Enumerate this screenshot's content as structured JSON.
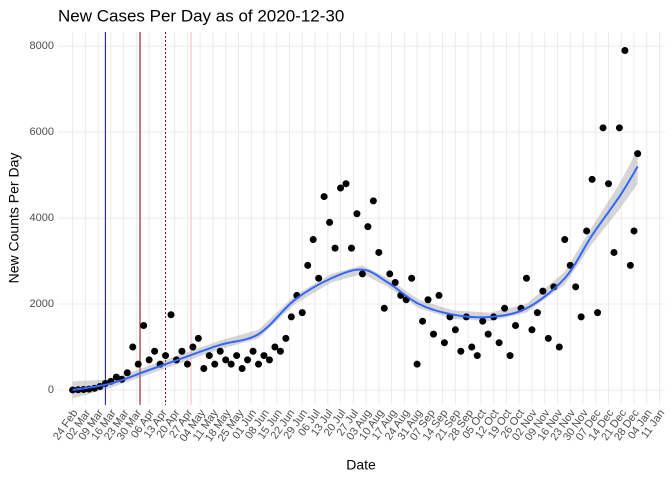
{
  "chart_data": {
    "type": "scatter",
    "title": "New Cases Per Day as of 2020-12-30",
    "x_label": "Date",
    "y_label": "New Counts Per Day",
    "xlim": [
      "2020-02-16",
      "2021-01-14"
    ],
    "ylim": [
      -350,
      8330
    ],
    "yticks": [
      0,
      2000,
      4000,
      6000,
      8000
    ],
    "xticks": [
      {
        "value": "2020-02-24",
        "label": "24 Feb"
      },
      {
        "value": "2020-03-02",
        "label": "02 Mar"
      },
      {
        "value": "2020-03-09",
        "label": "09 Mar"
      },
      {
        "value": "2020-03-16",
        "label": "16 Mar"
      },
      {
        "value": "2020-03-23",
        "label": "23 Mar"
      },
      {
        "value": "2020-03-30",
        "label": "30 Mar"
      },
      {
        "value": "2020-04-06",
        "label": "06 Apr"
      },
      {
        "value": "2020-04-13",
        "label": "13 Apr"
      },
      {
        "value": "2020-04-20",
        "label": "20 Apr"
      },
      {
        "value": "2020-04-27",
        "label": "27 Apr"
      },
      {
        "value": "2020-05-04",
        "label": "04 May"
      },
      {
        "value": "2020-05-11",
        "label": "11 May"
      },
      {
        "value": "2020-05-18",
        "label": "18 May"
      },
      {
        "value": "2020-05-25",
        "label": "25 May"
      },
      {
        "value": "2020-06-01",
        "label": "01 Jun"
      },
      {
        "value": "2020-06-08",
        "label": "08 Jun"
      },
      {
        "value": "2020-06-15",
        "label": "15 Jun"
      },
      {
        "value": "2020-06-22",
        "label": "22 Jun"
      },
      {
        "value": "2020-06-29",
        "label": "29 Jun"
      },
      {
        "value": "2020-07-06",
        "label": "06 Jul"
      },
      {
        "value": "2020-07-13",
        "label": "13 Jul"
      },
      {
        "value": "2020-07-20",
        "label": "20 Jul"
      },
      {
        "value": "2020-07-27",
        "label": "27 Jul"
      },
      {
        "value": "2020-08-03",
        "label": "03 Aug"
      },
      {
        "value": "2020-08-10",
        "label": "10 Aug"
      },
      {
        "value": "2020-08-17",
        "label": "17 Aug"
      },
      {
        "value": "2020-08-24",
        "label": "24 Aug"
      },
      {
        "value": "2020-08-31",
        "label": "31 Aug"
      },
      {
        "value": "2020-09-07",
        "label": "07 Sep"
      },
      {
        "value": "2020-09-14",
        "label": "14 Sep"
      },
      {
        "value": "2020-09-21",
        "label": "21 Sep"
      },
      {
        "value": "2020-09-28",
        "label": "28 Sep"
      },
      {
        "value": "2020-10-05",
        "label": "05 Oct"
      },
      {
        "value": "2020-10-12",
        "label": "12 Oct"
      },
      {
        "value": "2020-10-19",
        "label": "19 Oct"
      },
      {
        "value": "2020-10-26",
        "label": "26 Oct"
      },
      {
        "value": "2020-11-02",
        "label": "02 Nov"
      },
      {
        "value": "2020-11-09",
        "label": "09 Nov"
      },
      {
        "value": "2020-11-16",
        "label": "16 Nov"
      },
      {
        "value": "2020-11-23",
        "label": "23 Nov"
      },
      {
        "value": "2020-11-30",
        "label": "30 Nov"
      },
      {
        "value": "2020-12-07",
        "label": "07 Dec"
      },
      {
        "value": "2020-12-14",
        "label": "14 Dec"
      },
      {
        "value": "2020-12-21",
        "label": "21 Dec"
      },
      {
        "value": "2020-12-28",
        "label": "28 Dec"
      },
      {
        "value": "2021-01-04",
        "label": "04 Jan"
      },
      {
        "value": "2021-01-11",
        "label": "11 Jan"
      }
    ],
    "grid": true,
    "color": "#000000",
    "x": [
      "2020-02-24",
      "2020-02-27",
      "2020-03-01",
      "2020-03-04",
      "2020-03-07",
      "2020-03-10",
      "2020-03-13",
      "2020-03-16",
      "2020-03-19",
      "2020-03-22",
      "2020-03-25",
      "2020-03-28",
      "2020-03-31",
      "2020-04-03",
      "2020-04-06",
      "2020-04-09",
      "2020-04-12",
      "2020-04-15",
      "2020-04-18",
      "2020-04-21",
      "2020-04-24",
      "2020-04-27",
      "2020-04-30",
      "2020-05-03",
      "2020-05-06",
      "2020-05-09",
      "2020-05-12",
      "2020-05-15",
      "2020-05-18",
      "2020-05-21",
      "2020-05-24",
      "2020-05-27",
      "2020-05-30",
      "2020-06-02",
      "2020-06-05",
      "2020-06-08",
      "2020-06-11",
      "2020-06-14",
      "2020-06-17",
      "2020-06-20",
      "2020-06-23",
      "2020-06-26",
      "2020-06-29",
      "2020-07-02",
      "2020-07-05",
      "2020-07-08",
      "2020-07-11",
      "2020-07-14",
      "2020-07-17",
      "2020-07-20",
      "2020-07-23",
      "2020-07-26",
      "2020-07-29",
      "2020-08-01",
      "2020-08-04",
      "2020-08-07",
      "2020-08-10",
      "2020-08-13",
      "2020-08-16",
      "2020-08-19",
      "2020-08-22",
      "2020-08-25",
      "2020-08-28",
      "2020-08-31",
      "2020-09-03",
      "2020-09-06",
      "2020-09-09",
      "2020-09-12",
      "2020-09-15",
      "2020-09-18",
      "2020-09-21",
      "2020-09-24",
      "2020-09-27",
      "2020-09-30",
      "2020-10-03",
      "2020-10-06",
      "2020-10-09",
      "2020-10-12",
      "2020-10-15",
      "2020-10-18",
      "2020-10-21",
      "2020-10-24",
      "2020-10-27",
      "2020-10-30",
      "2020-11-02",
      "2020-11-05",
      "2020-11-08",
      "2020-11-11",
      "2020-11-14",
      "2020-11-17",
      "2020-11-20",
      "2020-11-23",
      "2020-11-26",
      "2020-11-29",
      "2020-12-02",
      "2020-12-05",
      "2020-12-08",
      "2020-12-11",
      "2020-12-14",
      "2020-12-17",
      "2020-12-20",
      "2020-12-23",
      "2020-12-26",
      "2020-12-28",
      "2020-12-30"
    ],
    "values": [
      0,
      5,
      10,
      20,
      40,
      80,
      150,
      200,
      300,
      250,
      400,
      1000,
      600,
      1500,
      700,
      900,
      600,
      800,
      1750,
      700,
      900,
      600,
      1000,
      1200,
      500,
      800,
      600,
      900,
      700,
      600,
      800,
      500,
      700,
      900,
      600,
      800,
      700,
      1000,
      900,
      1200,
      1700,
      2200,
      1800,
      2900,
      3500,
      2600,
      4500,
      3900,
      3300,
      4700,
      4800,
      3300,
      4100,
      2700,
      3800,
      4400,
      3200,
      1900,
      2700,
      2500,
      2200,
      2100,
      2600,
      600,
      1600,
      2100,
      1300,
      2200,
      1100,
      1700,
      1400,
      900,
      1700,
      1000,
      800,
      1600,
      1300,
      1700,
      1100,
      1900,
      800,
      1500,
      1900,
      2600,
      1400,
      1800,
      2300,
      1200,
      2400,
      1000,
      3500,
      2900,
      2400,
      1700,
      3700,
      4900,
      1800,
      6100,
      4800,
      3200,
      6100,
      7900,
      2900,
      3700,
      5500
    ],
    "trend": {
      "color": "#3366ff",
      "x": [
        "2020-02-24",
        "2020-03-16",
        "2020-04-05",
        "2020-04-25",
        "2020-05-15",
        "2020-06-05",
        "2020-06-25",
        "2020-07-15",
        "2020-08-01",
        "2020-08-15",
        "2020-09-01",
        "2020-09-20",
        "2020-10-10",
        "2020-10-30",
        "2020-11-20",
        "2020-12-05",
        "2020-12-20",
        "2020-12-30"
      ],
      "values": [
        0,
        150,
        450,
        750,
        1050,
        1300,
        2100,
        2600,
        2800,
        2500,
        2000,
        1750,
        1700,
        1900,
        2600,
        3600,
        4500,
        5200
      ],
      "lower": [
        -200,
        50,
        350,
        650,
        950,
        1200,
        2000,
        2500,
        2700,
        2400,
        1900,
        1650,
        1600,
        1800,
        2450,
        3400,
        4200,
        4800
      ],
      "upper": [
        200,
        250,
        550,
        850,
        1150,
        1400,
        2200,
        2700,
        2900,
        2600,
        2100,
        1850,
        1800,
        2000,
        2750,
        3800,
        4800,
        5600
      ]
    },
    "vlines": [
      {
        "x": "2020-03-13",
        "color": "#0000ff",
        "dash": false
      },
      {
        "x": "2020-04-01",
        "color": "#8b0000",
        "dash": false
      },
      {
        "x": "2020-04-15",
        "color": "#8b0000",
        "dash": true
      },
      {
        "x": "2020-04-29",
        "color": "#ffb6c1",
        "dash": false
      }
    ]
  }
}
